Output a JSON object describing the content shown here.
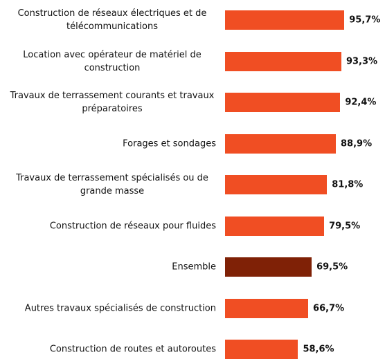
{
  "chart_data": {
    "type": "hbar",
    "categories": [
      "Construction de réseaux électriques et de télécommunications",
      "Location avec opérateur de matériel de construction",
      "Travaux de terrassement courants et travaux préparatoires",
      "Forages et sondages",
      "Travaux de terrassement spécialisés ou de grande masse",
      "Construction de réseaux pour fluides",
      "Ensemble",
      "Autres travaux spécialisés de construction",
      "Construction de routes et autoroutes"
    ],
    "values": [
      95.7,
      93.3,
      92.4,
      88.9,
      81.8,
      79.5,
      69.5,
      66.7,
      58.6
    ],
    "value_labels": [
      "95,7%",
      "93,3%",
      "92,4%",
      "88,9%",
      "81,8%",
      "79,5%",
      "69,5%",
      "66,7%",
      "58,6%"
    ],
    "colors": [
      "#f04e23",
      "#f04e23",
      "#f04e23",
      "#f04e23",
      "#f04e23",
      "#f04e23",
      "#7f2106",
      "#f04e23",
      "#f04e23"
    ]
  }
}
